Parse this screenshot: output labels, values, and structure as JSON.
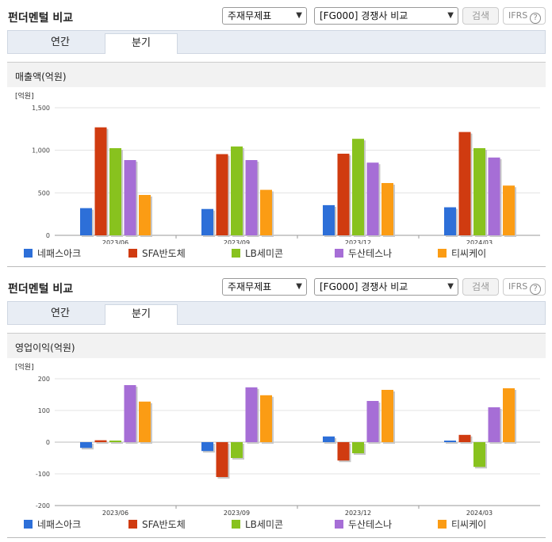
{
  "panels": [
    {
      "title": "펀더멘털 비교",
      "select1": "주재무제표",
      "select2": "[FG000] 경쟁사 비교",
      "search_label": "검색",
      "ifrs_label": "IFRS",
      "help": "?",
      "tabs": [
        "연간",
        "분기"
      ],
      "active_tab": 1,
      "section_title": "매출액(억원)",
      "unit_label": "[억원]"
    },
    {
      "title": "펀더멘털 비교",
      "select1": "주재무제표",
      "select2": "[FG000] 경쟁사 비교",
      "search_label": "검색",
      "ifrs_label": "IFRS",
      "help": "?",
      "tabs": [
        "연간",
        "분기"
      ],
      "active_tab": 1,
      "section_title": "영업이익(억원)",
      "unit_label": "[억원]"
    }
  ],
  "colors": [
    "#2d6fd8",
    "#d03b10",
    "#88c21e",
    "#a66ed6",
    "#fb9c14"
  ],
  "chart_data": [
    {
      "type": "bar",
      "categories": [
        "2023/06",
        "2023/09",
        "2023/12",
        "2024/03"
      ],
      "ylim": [
        0,
        1500
      ],
      "yticks": [
        0,
        500,
        1000,
        1500
      ],
      "ytick_labels": [
        "0",
        "500",
        "1,000",
        "1,500"
      ],
      "series": [
        {
          "name": "네패스아크",
          "values": [
            320,
            310,
            355,
            330
          ]
        },
        {
          "name": "SFA반도체",
          "values": [
            1270,
            955,
            960,
            1215
          ]
        },
        {
          "name": "LB세미콘",
          "values": [
            1025,
            1045,
            1135,
            1025
          ]
        },
        {
          "name": "두산테스나",
          "values": [
            885,
            885,
            855,
            915
          ]
        },
        {
          "name": "티씨케이",
          "values": [
            475,
            535,
            615,
            585
          ]
        }
      ]
    },
    {
      "type": "bar",
      "categories": [
        "2023/06",
        "2023/09",
        "2023/12",
        "2024/03"
      ],
      "ylim": [
        -200,
        200
      ],
      "yticks": [
        -200,
        -100,
        0,
        100,
        200
      ],
      "ytick_labels": [
        "-200",
        "-100",
        "0",
        "100",
        "200"
      ],
      "series": [
        {
          "name": "네패스아크",
          "values": [
            -18,
            -28,
            18,
            5
          ]
        },
        {
          "name": "SFA반도체",
          "values": [
            6,
            -110,
            -58,
            23
          ]
        },
        {
          "name": "LB세미콘",
          "values": [
            5,
            -50,
            -35,
            -78
          ]
        },
        {
          "name": "두산테스나",
          "values": [
            180,
            173,
            130,
            110
          ]
        },
        {
          "name": "티씨케이",
          "values": [
            128,
            148,
            165,
            170
          ]
        }
      ]
    }
  ]
}
